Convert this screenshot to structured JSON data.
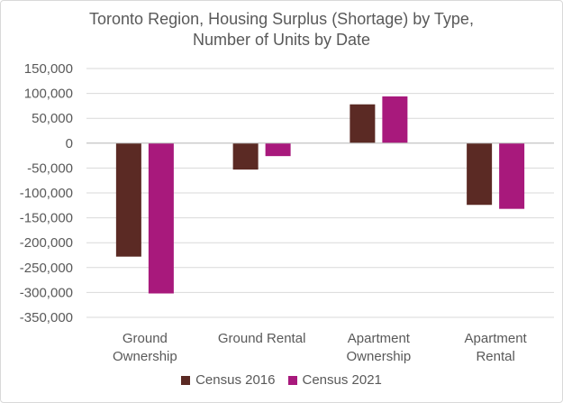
{
  "chart_data": {
    "type": "bar",
    "title": [
      "Toronto Region, Housing Surplus (Shortage) by Type,",
      "Number of Units by Date"
    ],
    "categories": [
      [
        "Ground",
        "Ownership"
      ],
      [
        "Ground Rental"
      ],
      [
        "Apartment",
        "Ownership"
      ],
      [
        "Apartment",
        "Rental"
      ]
    ],
    "series": [
      {
        "name": "Census 2016",
        "color": "#5b2a24",
        "values": [
          -228000,
          -53000,
          78000,
          -124000
        ]
      },
      {
        "name": "Census 2021",
        "color": "#a8197c",
        "values": [
          -302000,
          -26000,
          94000,
          -132000
        ]
      }
    ],
    "ylim": [
      -350000,
      150000
    ],
    "yticks": [
      150000,
      100000,
      50000,
      0,
      -50000,
      -100000,
      -150000,
      -200000,
      -250000,
      -300000,
      -350000
    ],
    "ytick_labels": [
      "150,000",
      "100,000",
      "50,000",
      "0",
      "-50,000",
      "-100,000",
      "-150,000",
      "-200,000",
      "-250,000",
      "-300,000",
      "-350,000"
    ],
    "gridlines": true,
    "xlabel": "",
    "ylabel": "",
    "legend_position": "bottom"
  }
}
